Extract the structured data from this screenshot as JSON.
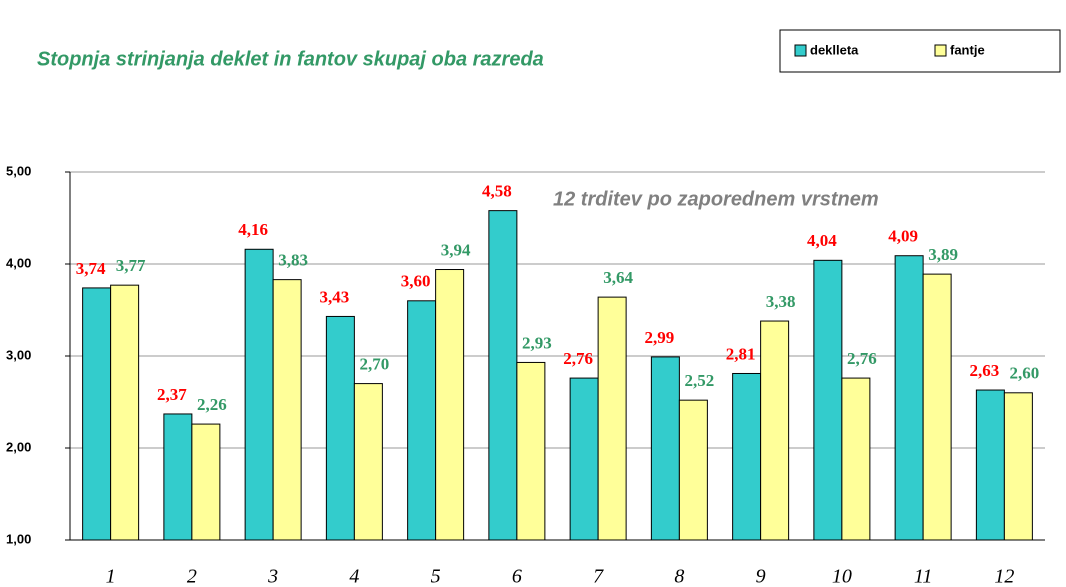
{
  "chart_data": {
    "type": "bar",
    "title": "Stopnja strinjanja deklet in fantov skupaj oba razreda",
    "annotation": "12  trditev po zaporednem vrstnem",
    "categories": [
      "1",
      "2",
      "3",
      "4",
      "5",
      "6",
      "7",
      "8",
      "9",
      "10",
      "11",
      "12"
    ],
    "series": [
      {
        "name": "deklleta",
        "color": "#33cccc",
        "label_color": "#ff0000",
        "values": [
          3.74,
          2.37,
          4.16,
          3.43,
          3.6,
          4.58,
          2.76,
          2.99,
          2.81,
          4.04,
          4.09,
          2.63
        ],
        "value_labels": [
          "3,74",
          "2,37",
          "4,16",
          "3,43",
          "3,60",
          "4,58",
          "2,76",
          "2,99",
          "2,81",
          "4,04",
          "4,09",
          "2,63"
        ]
      },
      {
        "name": "fantje",
        "color": "#ffff99",
        "label_color": "#339966",
        "values": [
          3.77,
          2.26,
          3.83,
          2.7,
          3.94,
          2.93,
          3.64,
          2.52,
          3.38,
          2.76,
          3.89,
          2.6
        ],
        "value_labels": [
          "3,77",
          "2,26",
          "3,83",
          "2,70",
          "3,94",
          "2,93",
          "3,64",
          "2,52",
          "3,38",
          "2,76",
          "3,89",
          "2,60"
        ]
      }
    ],
    "ylim": [
      1,
      5
    ],
    "yticks": [
      {
        "value": 1,
        "label": "1,00"
      },
      {
        "value": 2,
        "label": "2,00"
      },
      {
        "value": 3,
        "label": "3,00"
      },
      {
        "value": 4,
        "label": "4,00"
      },
      {
        "value": 5,
        "label": "5,00"
      }
    ],
    "grid": true,
    "legend": "top-right"
  }
}
